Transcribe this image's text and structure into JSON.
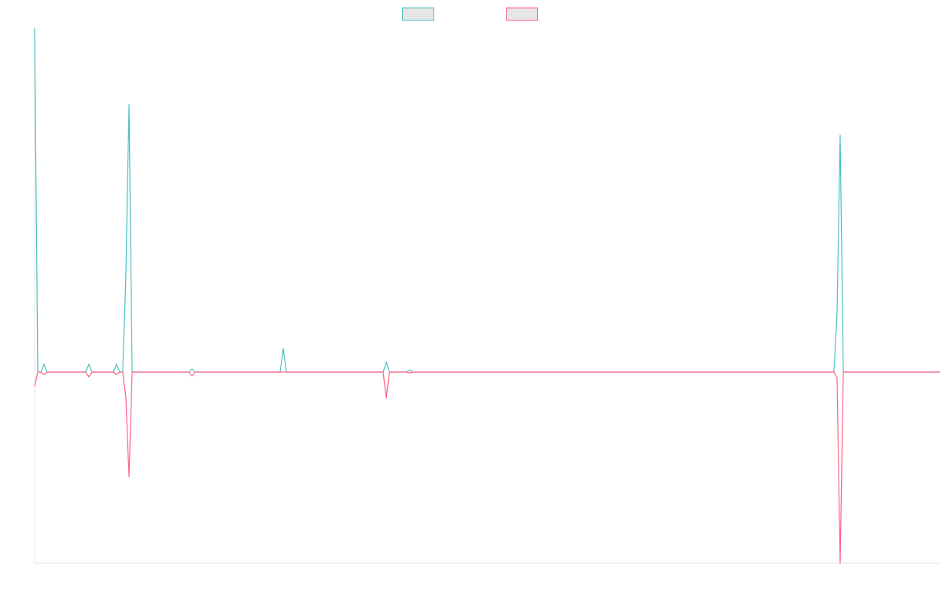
{
  "chart_data": {
    "type": "line",
    "x": [
      0,
      4,
      8,
      12,
      16,
      65,
      69,
      73,
      100,
      104,
      108,
      112,
      116,
      120,
      124,
      196,
      200,
      204,
      312,
      316,
      320,
      443,
      447,
      451,
      473,
      477,
      481,
      1016,
      1020,
      1024,
      1028,
      1151
    ],
    "xlim": [
      0,
      1151
    ],
    "ylim": [
      -243,
      437
    ],
    "legend": "top",
    "series": [
      {
        "color": "#4bc0c0",
        "values": [
          437,
          0,
          0,
          10,
          0,
          0,
          10,
          0,
          0,
          10,
          0,
          0,
          123,
          340,
          0,
          0,
          4,
          0,
          0,
          30,
          0,
          0,
          13,
          0,
          0,
          3,
          0,
          0,
          73,
          301,
          0,
          0
        ]
      },
      {
        "color": "#ff6384",
        "values": [
          -18,
          0,
          0,
          -3,
          0,
          0,
          -6,
          0,
          0,
          -3,
          0,
          0,
          -32,
          -133,
          0,
          0,
          -5,
          0,
          0,
          0,
          0,
          0,
          -33,
          0,
          0,
          -1,
          0,
          0,
          -7,
          -243,
          0,
          0
        ]
      }
    ]
  }
}
